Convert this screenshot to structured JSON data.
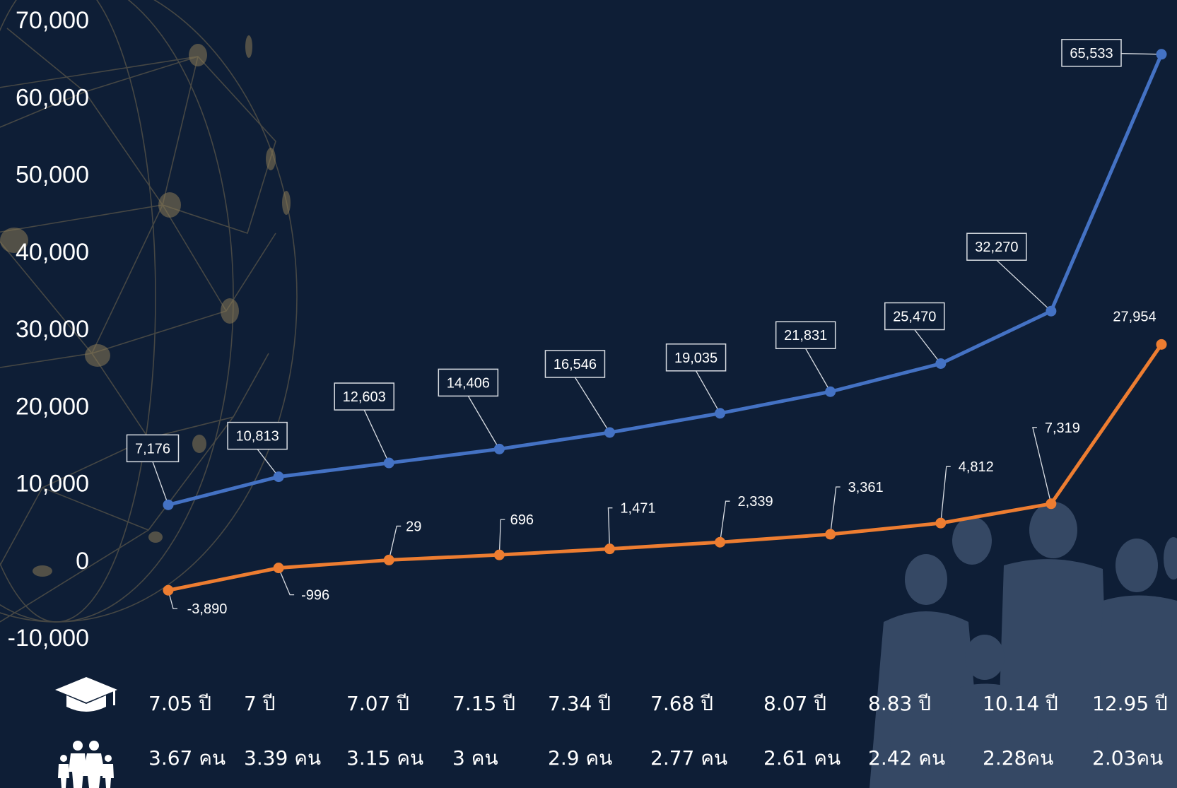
{
  "chart_data": {
    "type": "line",
    "ylim": [
      -10000,
      70000
    ],
    "yticks": [
      "70,000",
      "60,000",
      "50,000",
      "40,000",
      "30,000",
      "20,000",
      "10,000",
      "0",
      "-10,000"
    ],
    "ytick_values": [
      70000,
      60000,
      50000,
      40000,
      30000,
      20000,
      10000,
      0,
      -10000
    ],
    "grid": false,
    "legend": "none",
    "series": [
      {
        "color": "#4472c4",
        "values": [
          7176,
          10813,
          12603,
          14406,
          16546,
          19035,
          21831,
          25470,
          32270,
          65533
        ],
        "labels": [
          "7,176",
          "10,813",
          "12,603",
          "14,406",
          "16,546",
          "19,035",
          "21,831",
          "25,470",
          "32,270",
          "65,533"
        ]
      },
      {
        "color": "#ed7d31",
        "values": [
          -3890,
          -996,
          29,
          696,
          1471,
          2339,
          3361,
          4812,
          7319,
          27954
        ],
        "labels": [
          "-3,890",
          "-996",
          "29",
          "696",
          "1,471",
          "2,339",
          "3,361",
          "4,812",
          "7,319",
          "27,954"
        ]
      }
    ],
    "education": [
      "7.05 ปี",
      "7 ปี",
      "7.07 ปี",
      "7.15 ปี",
      "7.34 ปี",
      "7.68 ปี",
      "8.07 ปี",
      "8.83 ปี",
      "10.14 ปี",
      "12.95 ปี"
    ],
    "household": [
      "3.67 คน",
      "3.39 คน",
      "3.15 คน",
      "3 คน",
      "2.9 คน",
      "2.77 คน",
      "2.61 คน",
      "2.42 คน",
      "2.28คน",
      "2.03คน"
    ]
  },
  "icons": {
    "education": "graduation-cap-icon",
    "household": "family-icon"
  },
  "colors": {
    "background": "#0e1e36",
    "blue": "#4472c4",
    "orange": "#ed7d31"
  }
}
